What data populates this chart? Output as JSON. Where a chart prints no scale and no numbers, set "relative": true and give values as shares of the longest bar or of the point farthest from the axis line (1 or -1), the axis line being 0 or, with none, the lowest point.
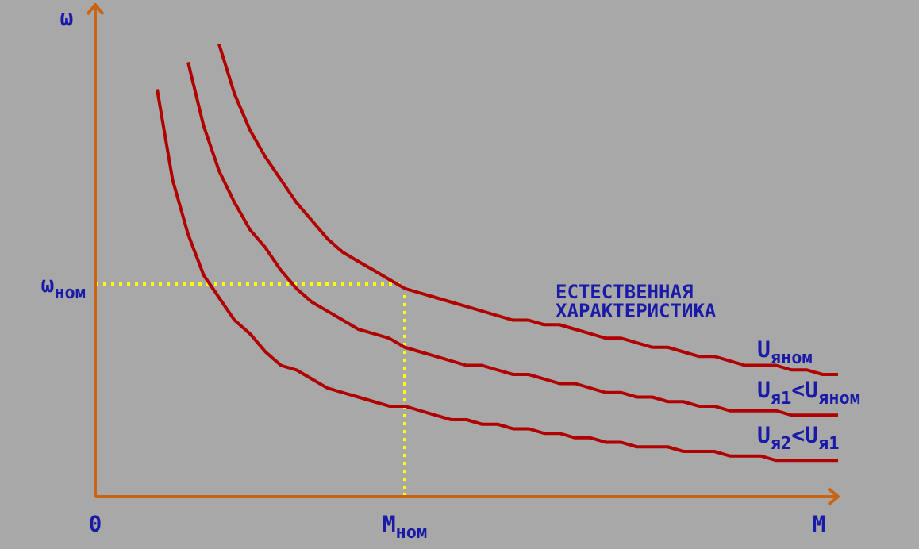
{
  "chart_data": {
    "type": "line",
    "relative": true,
    "xlabel": "M",
    "ylabel": "ω",
    "categories": [
      "0",
      null,
      null,
      null,
      null,
      null,
      null,
      null,
      null,
      null,
      null,
      null,
      null,
      null,
      null,
      null,
      null,
      null,
      null,
      null,
      "M$_{ном}$",
      null,
      null,
      null,
      null,
      null,
      null,
      null,
      null,
      null,
      null,
      null,
      null,
      null,
      null,
      null,
      null,
      null,
      null,
      null,
      null,
      null,
      null,
      null,
      null,
      null,
      null,
      null,
      null
    ],
    "series": [
      {
        "name": "U$_{яном}$",
        "color": "#b00000",
        "values": [
          null,
          null,
          null,
          null,
          null,
          null,
          null,
          null,
          1,
          0.89,
          0.81,
          0.75,
          0.7,
          0.65,
          0.61,
          0.57,
          0.54,
          0.52,
          0.5,
          0.48,
          0.46,
          0.45,
          0.44,
          0.43,
          0.42,
          0.41,
          0.4,
          0.39,
          0.39,
          0.38,
          0.38,
          0.37,
          0.36,
          0.35,
          0.35,
          0.34,
          0.33,
          0.33,
          0.32,
          0.31,
          0.31,
          0.3,
          0.29,
          0.29,
          0.29,
          0.28,
          0.28,
          0.27,
          0.27
        ]
      },
      {
        "name": "U$_{я1}$<U$_{яном}$",
        "color": "#b00000",
        "values": [
          null,
          null,
          null,
          null,
          null,
          null,
          0.96,
          0.82,
          0.72,
          0.65,
          0.59,
          0.55,
          0.5,
          0.46,
          0.43,
          0.41,
          0.39,
          0.37,
          0.36,
          0.35,
          0.33,
          0.32,
          0.31,
          0.3,
          0.29,
          0.29,
          0.28,
          0.27,
          0.27,
          0.26,
          0.25,
          0.25,
          0.24,
          0.23,
          0.23,
          0.22,
          0.22,
          0.21,
          0.21,
          0.2,
          0.2,
          0.19,
          0.19,
          0.19,
          0.19,
          0.18,
          0.18,
          0.18,
          0.18
        ]
      },
      {
        "name": "U$_{я2}$<U$_{я1}$",
        "color": "#b00000",
        "values": [
          null,
          null,
          null,
          null,
          0.9,
          0.7,
          0.58,
          0.49,
          0.44,
          0.39,
          0.36,
          0.32,
          0.29,
          0.28,
          0.26,
          0.24,
          0.23,
          0.22,
          0.21,
          0.2,
          0.2,
          0.19,
          0.18,
          0.17,
          0.17,
          0.16,
          0.16,
          0.15,
          0.15,
          0.14,
          0.14,
          0.13,
          0.13,
          0.12,
          0.12,
          0.11,
          0.11,
          0.11,
          0.1,
          0.1,
          0.1,
          0.09,
          0.09,
          0.09,
          0.08,
          0.08,
          0.08,
          0.08,
          0.08
        ]
      }
    ],
    "annotations": [
      "ЕСТЕСТВЕННАЯ ХАРАКТЕРИСТИКА"
    ],
    "ref_lines": [
      {
        "axis": "y",
        "value": 0.47,
        "label": "ω$_{ном}$",
        "color": "#ffff00",
        "line_style": "dotted"
      },
      {
        "axis": "x",
        "value": "M$_{ном}$",
        "color": "#ffff00",
        "line_style": "dotted"
      }
    ]
  }
}
